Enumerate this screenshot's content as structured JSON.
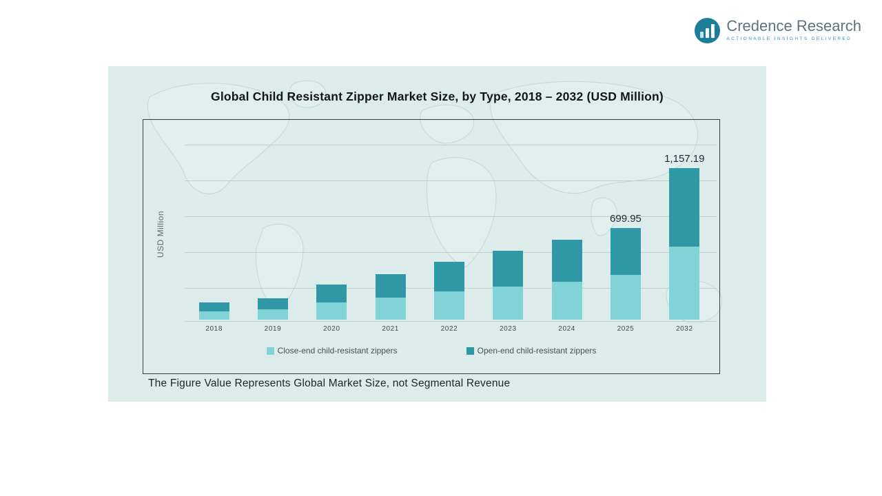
{
  "logo": {
    "name": "Credence Research",
    "tagline": "Actionable Insights Delivered"
  },
  "chart": {
    "title": "Global Child Resistant Zipper Market Size, by Type, 2018 – 2032 (USD Million)",
    "footnote": "The Figure Value Represents Global Market Size, not Segmental Revenue"
  },
  "chart_data": {
    "type": "bar",
    "stacked": true,
    "title": "Global Child Resistant Zipper Market Size, by Type, 2018 – 2032 (USD Million)",
    "xlabel": "",
    "ylabel": "USD Million",
    "categories": [
      "2018",
      "2019",
      "2020",
      "2021",
      "2022",
      "2023",
      "2024",
      "2025",
      "2032"
    ],
    "series": [
      {
        "name": "Close-end child-resistant zippers",
        "color": "#82d3d8",
        "values": [
          63,
          78,
          130,
          169,
          216,
          255,
          290,
          341.95,
          560
        ]
      },
      {
        "name": "Open-end child-resistant zippers",
        "color": "#2e98a6",
        "values": [
          67,
          83,
          137,
          177,
          224,
          272,
          319,
          358,
          597.19
        ]
      }
    ],
    "totals": [
      130,
      161,
      267,
      346,
      440,
      527,
      609,
      699.95,
      1157.19
    ],
    "value_labels": [
      "",
      "",
      "",
      "",
      "",
      "",
      "",
      "699.95",
      "1,157.19"
    ],
    "ylim": [
      0,
      1250
    ],
    "grid": true,
    "legend_position": "bottom"
  }
}
